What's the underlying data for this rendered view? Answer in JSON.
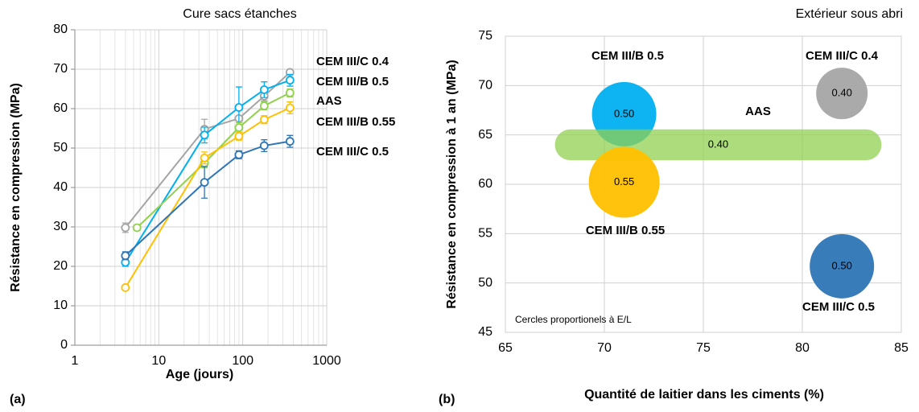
{
  "chart_data": [
    {
      "type": "line",
      "title": "Cure sacs étanches",
      "panel_label": "(a)",
      "x_label": "Age (jours)",
      "y_label": "Résistance en compression (MPa)",
      "xlim": [
        1,
        1000
      ],
      "xticks": [
        1,
        10,
        100,
        1000
      ],
      "x_log": true,
      "minor_grid": true,
      "ylim": [
        0,
        80
      ],
      "yticks": [
        0,
        10,
        20,
        30,
        40,
        50,
        60,
        70,
        80
      ],
      "grid": true,
      "series": [
        {
          "name": "CEM III/C 0.4",
          "color": "#a5a5a5",
          "x": [
            4,
            35,
            90,
            180,
            365
          ],
          "values": [
            29.8,
            54.8,
            57.5,
            63.2,
            69.2
          ],
          "errors": [
            1.2,
            2.5,
            0.6,
            1.2,
            0.6
          ]
        },
        {
          "name": "CEM III/B 0.5",
          "color": "#00b0f0",
          "x": [
            4,
            35,
            90,
            180,
            365
          ],
          "values": [
            21,
            53.3,
            60.3,
            64.8,
            67.2
          ],
          "errors": [
            1,
            2,
            5.2,
            2,
            1.5
          ]
        },
        {
          "name": "AAS",
          "color": "#92d050",
          "x": [
            5.5,
            35,
            90,
            180,
            365
          ],
          "values": [
            29.8,
            46.2,
            55.2,
            60.7,
            64
          ],
          "errors": [
            0.6,
            1.2,
            1.2,
            1,
            1
          ]
        },
        {
          "name": "CEM III/B 0.55",
          "color": "#ffc000",
          "x": [
            4,
            35,
            90,
            180,
            365
          ],
          "values": [
            14.6,
            47.5,
            53,
            57.2,
            60.2
          ],
          "errors": [
            0.6,
            1.5,
            1,
            1,
            1.5
          ]
        },
        {
          "name": "CEM III/C 0.5",
          "color": "#2e75b6",
          "x": [
            4,
            35,
            90,
            180,
            365
          ],
          "values": [
            22.7,
            41.3,
            48.3,
            50.6,
            51.7
          ],
          "errors": [
            1,
            4,
            1,
            1.5,
            1.5
          ]
        }
      ]
    },
    {
      "type": "bubble",
      "title": "Extérieur sous abri",
      "panel_label": "(b)",
      "x_label": "Quantité de laitier dans les ciments (%)",
      "y_label": "Résistance en compression à 1 an (MPa)",
      "annotation": "Cercles proportionels à E/L",
      "xlim": [
        65,
        85
      ],
      "xticks": [
        65,
        70,
        75,
        80,
        85
      ],
      "ylim": [
        45,
        75
      ],
      "yticks": [
        45,
        50,
        55,
        60,
        65,
        70,
        75
      ],
      "grid": true,
      "points": [
        {
          "name": "CEM III/B 0.5",
          "color": "#00b0f0",
          "x": 71,
          "y": 67.1,
          "size": 0.5,
          "size_label": "0.50"
        },
        {
          "name": "CEM III/C 0.4",
          "color": "#a5a5a5",
          "x": 82,
          "y": 69.2,
          "size": 0.4,
          "size_label": "0.40"
        },
        {
          "name": "AAS",
          "color": "#92d050",
          "xmin": 67.5,
          "xmax": 84,
          "y": 64,
          "size": 0.4,
          "size_label": "0.40"
        },
        {
          "name": "CEM III/B 0.55",
          "color": "#ffc000",
          "x": 71,
          "y": 60.2,
          "size": 0.55,
          "size_label": "0.55"
        },
        {
          "name": "CEM III/C 0.5",
          "color": "#2e75b6",
          "x": 82,
          "y": 51.7,
          "size": 0.5,
          "size_label": "0.50"
        }
      ]
    }
  ]
}
